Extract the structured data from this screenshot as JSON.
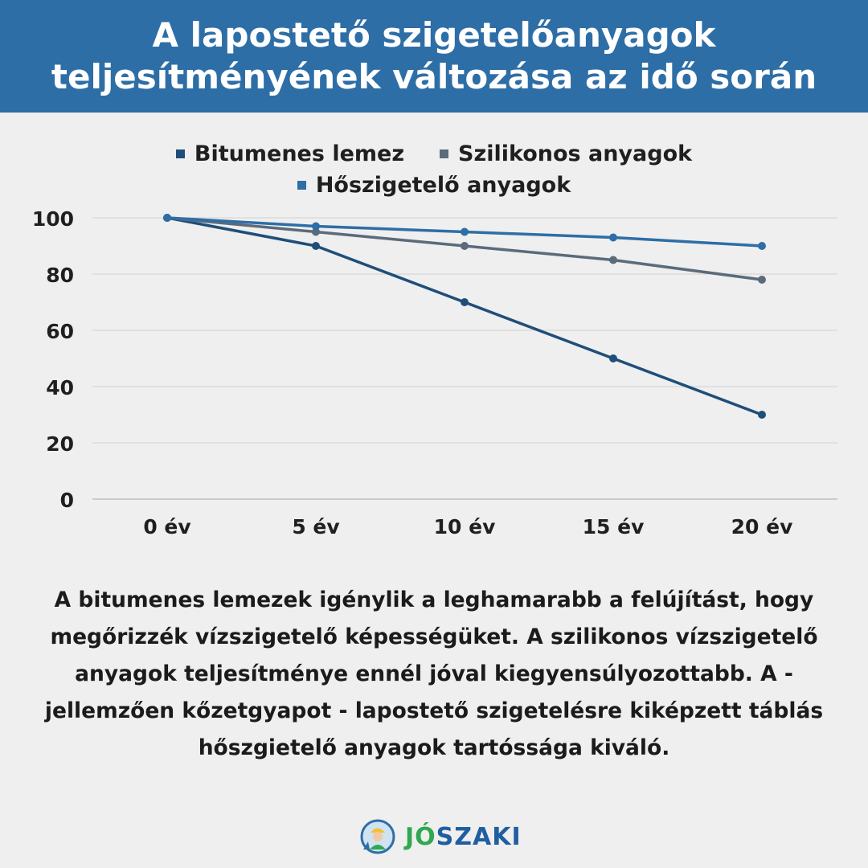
{
  "header": {
    "title_line1": "A lapostető szigetelőanyagok",
    "title_line2": "teljesítményének változása az idő során"
  },
  "chart_data": {
    "type": "line",
    "categories": [
      "0 év",
      "5 év",
      "10 év",
      "15 év",
      "20 év"
    ],
    "series": [
      {
        "name": "Bitumenes lemez",
        "values": [
          100,
          90,
          70,
          50,
          30
        ],
        "color": "#1f4e79"
      },
      {
        "name": "Szilikonos anyagok",
        "values": [
          100,
          95,
          90,
          85,
          78
        ],
        "color": "#5b6b7b"
      },
      {
        "name": "Hőszigetelő anyagok",
        "values": [
          100,
          97,
          95,
          93,
          90
        ],
        "color": "#2e6ea6"
      }
    ],
    "ylim": [
      0,
      100
    ],
    "yticks": [
      0,
      20,
      40,
      60,
      80,
      100
    ],
    "grid": true,
    "legend_position": "top",
    "xlabel": "",
    "ylabel": ""
  },
  "description": {
    "line1": "A bitumenes lemezek igénylik a leghamarabb a felújítást, hogy",
    "line2": "megőrizzék vízszigetelő képességüket. A szilikonos vízszigetelő",
    "line3": "anyagok teljesítménye ennél jóval kiegyensúlyozottabb. A -",
    "line4": "jellemzően kőzetgyapot - lapostető szigetelésre kiképzett táblás",
    "line5": "hőszgietelő anyagok tartóssága kiváló."
  },
  "logo": {
    "part1": "JÓ",
    "part2": "SZAKI",
    "green": "#2fa84f",
    "blue": "#1f5fa0"
  }
}
